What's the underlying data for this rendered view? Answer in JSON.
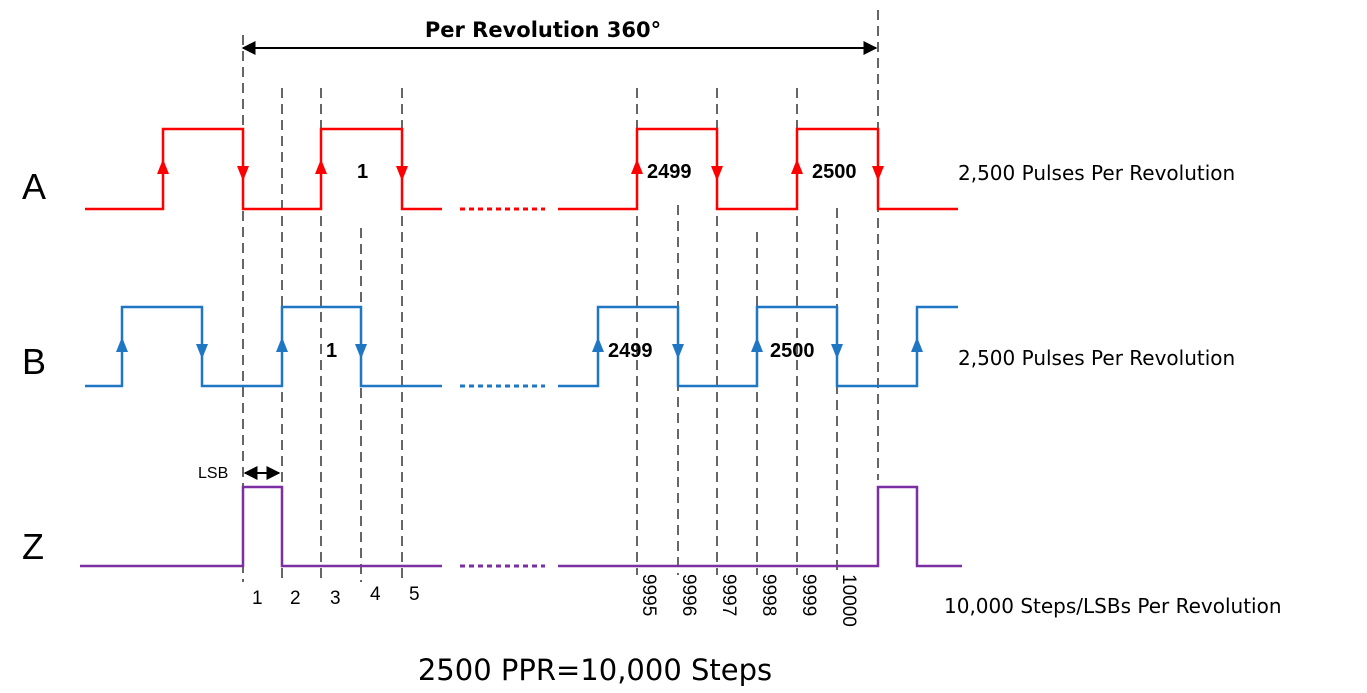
{
  "title": "Per Revolution 360°",
  "channels": [
    {
      "id": "a",
      "label": "A",
      "note": "2,500 Pulses Per Revolution",
      "color": "#ff0000"
    },
    {
      "id": "b",
      "label": "B",
      "note": "2,500 Pulses Per Revolution",
      "color": "#1f77c4"
    },
    {
      "id": "z",
      "label": "Z",
      "note": "10,000 Steps/LSBs Per Revolution",
      "color": "#7b2fa0"
    }
  ],
  "pulse_labels": {
    "a": [
      "1",
      "2499",
      "2500"
    ],
    "b": [
      "1",
      "2499",
      "2500"
    ]
  },
  "lsb_label": "LSB",
  "steps_left": [
    "1",
    "2",
    "3",
    "4",
    "5"
  ],
  "steps_right": [
    "9995",
    "9996",
    "9997",
    "9998",
    "9999",
    "10000"
  ],
  "footer": "2500 PPR=10,000 Steps",
  "colors": {
    "dash": "#333333",
    "ink": "#000000"
  }
}
